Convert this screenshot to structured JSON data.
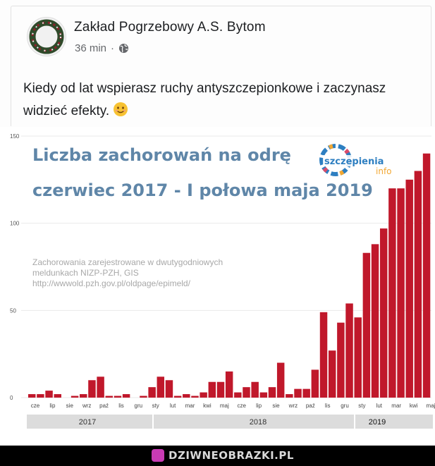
{
  "post": {
    "author": "Zakład Pogrzebowy A.S. Bytom",
    "time": "36 min",
    "separator": "·",
    "privacy_icon": "globe-icon",
    "text": "Kiedy od lat wspierasz ruchy antyszczepionkowe i zaczynasz widzieć efekty.",
    "emoji": "smiling-face-icon"
  },
  "chart_image": {
    "title_line1": "Liczba zachorowań na odrę",
    "title_line2": "czerwiec 2017 - I połowa maja 2019",
    "logo_text": "szczepienia",
    "logo_sub": "info",
    "note_line1": "Zachorowania zarejestrowane w dwutygodniowych",
    "note_line2": "meldunkach NIZP-PZH, GIS",
    "note_line3": "http://wwwold.pzh.gov.pl/oldpage/epimeld/"
  },
  "chart_data": {
    "type": "bar",
    "title": "Liczba zachorowań na odrę czerwiec 2017 - I połowa maja 2019",
    "xlabel": "",
    "ylabel": "",
    "ylim": [
      0,
      150
    ],
    "yticks": [
      0,
      50,
      100,
      150
    ],
    "grid": true,
    "color": "#c0182b",
    "month_labels": [
      "cze",
      "lip",
      "sie",
      "wrz",
      "paź",
      "lis",
      "gru",
      "sty",
      "lut",
      "mar",
      "kwi",
      "maj",
      "cze",
      "lip",
      "sie",
      "wrz",
      "paź",
      "lis",
      "gru",
      "sty",
      "lut",
      "mar",
      "kwi",
      "maj"
    ],
    "year_labels": [
      "2017",
      "2018",
      "2019"
    ],
    "values": [
      2,
      2,
      4,
      2,
      0,
      1,
      2,
      10,
      12,
      1,
      1,
      2,
      0,
      1,
      6,
      12,
      10,
      1,
      2,
      1,
      3,
      9,
      9,
      15,
      3,
      6,
      9,
      3,
      6,
      20,
      2,
      5,
      5,
      16,
      49,
      27,
      43,
      54,
      46,
      83,
      88,
      97,
      120,
      120,
      125,
      130,
      140
    ]
  },
  "footer": {
    "brand": "DZIWNEOBRAZKI.PL"
  },
  "colors": {
    "bar": "#c0182b",
    "title": "#5f86a8",
    "background": "#ffffff",
    "footer": "#000000"
  }
}
